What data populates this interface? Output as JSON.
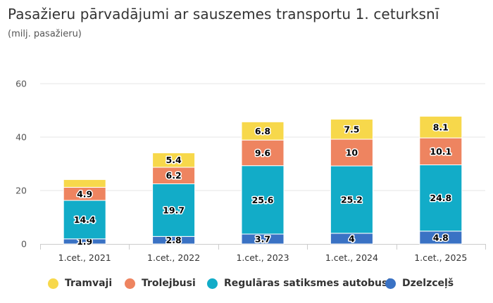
{
  "chart_data": {
    "type": "bar",
    "stacked": true,
    "title": "Pasažieru pārvadājumi ar sauszemes transportu 1. ceturksnī",
    "subtitle": "(milj. pasažieru)",
    "categories": [
      "1.cet., 2021",
      "1.cet., 2022",
      "1.cet., 2023",
      "1.cet., 2024",
      "1.cet., 2025"
    ],
    "yticks": [
      0,
      20,
      40,
      60
    ],
    "ylim": [
      0,
      60
    ],
    "grid": true,
    "legend_position": "bottom",
    "series": [
      {
        "name": "Dzelzceļš",
        "color": "#3a72c4",
        "values": [
          1.9,
          2.8,
          3.7,
          4,
          4.8
        ],
        "labels": [
          "1.9",
          "2.8",
          "3.7",
          "4",
          "4.8"
        ]
      },
      {
        "name": "Regulāras satiksmes autobusi",
        "color": "#12acc8",
        "values": [
          14.4,
          19.7,
          25.6,
          25.2,
          24.8
        ],
        "labels": [
          "14.4",
          "19.7",
          "25.6",
          "25.2",
          "24.8"
        ]
      },
      {
        "name": "Trolejbusi",
        "color": "#ee8460",
        "values": [
          4.9,
          6.2,
          9.6,
          10,
          10.1
        ],
        "labels": [
          "4.9",
          "6.2",
          "9.6",
          "10",
          "10.1"
        ]
      },
      {
        "name": "Tramvaji",
        "color": "#f7d84b",
        "values": [
          2.9,
          5.4,
          6.8,
          7.5,
          8.1
        ],
        "labels": [
          "",
          "5.4",
          "6.8",
          "7.5",
          "8.1"
        ]
      }
    ],
    "legend": [
      {
        "name": "Tramvaji",
        "color": "#f7d84b"
      },
      {
        "name": "Trolejbusi",
        "color": "#ee8460"
      },
      {
        "name": "Regulāras satiksmes autobusi",
        "color": "#12acc8"
      },
      {
        "name": "Dzelzceļš",
        "color": "#3a72c4"
      }
    ]
  }
}
